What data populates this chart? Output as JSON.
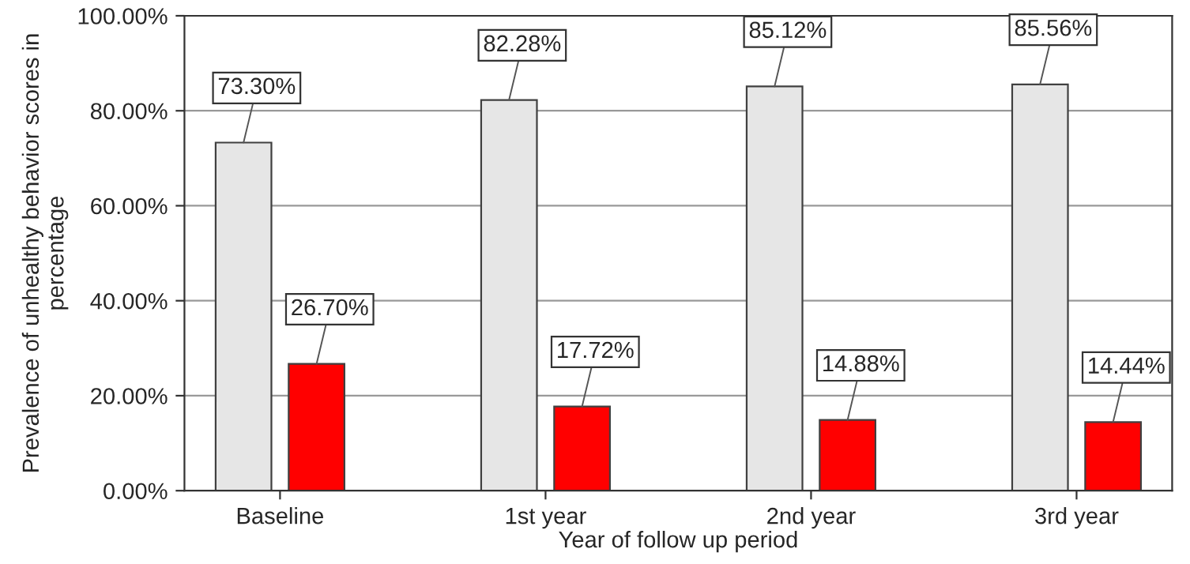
{
  "chart_data": {
    "type": "bar",
    "categories": [
      "Baseline",
      "1st year",
      "2nd year",
      "3rd year"
    ],
    "series": [
      {
        "color": "#e6e6e6",
        "values": [
          73.3,
          82.28,
          85.12,
          85.56
        ],
        "value_labels": [
          "73.30%",
          "82.28%",
          "85.12%",
          "85.56%"
        ]
      },
      {
        "color": "#ff0000",
        "values": [
          26.7,
          17.72,
          14.88,
          14.44
        ],
        "value_labels": [
          "26.70%",
          "17.72%",
          "14.88%",
          "14.44%"
        ]
      }
    ],
    "xlabel": "Year of follow up period",
    "ylabel": "Prevalence of unhealthy behavior scores in percentage",
    "ylim": [
      0,
      100
    ],
    "yticks": [
      {
        "value": 0,
        "label": "0.00%"
      },
      {
        "value": 20,
        "label": "20.00%"
      },
      {
        "value": 40,
        "label": "40.00%"
      },
      {
        "value": 60,
        "label": "60.00%"
      },
      {
        "value": 80,
        "label": "80.00%"
      },
      {
        "value": 100,
        "label": "100.00%"
      }
    ],
    "grid": "y"
  }
}
